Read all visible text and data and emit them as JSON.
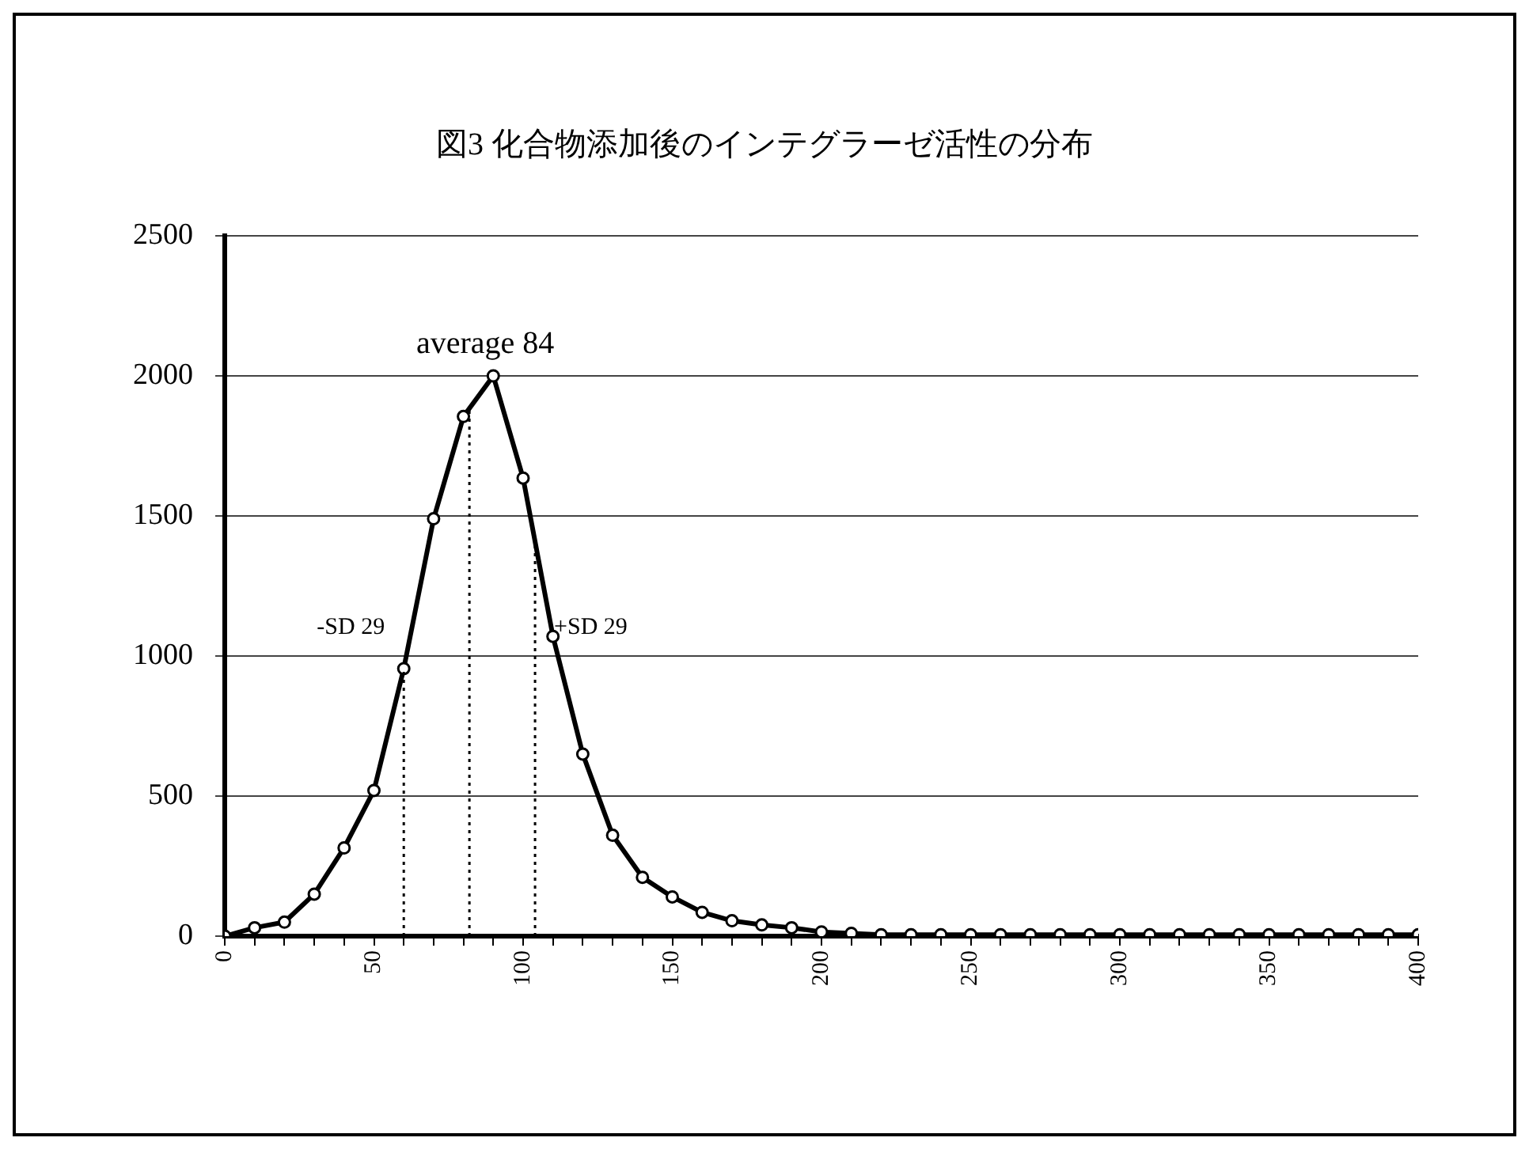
{
  "chart_data": {
    "type": "line",
    "title": "図3 化合物添加後のインテグラーゼ活性の分布",
    "x": [
      0,
      10,
      20,
      30,
      40,
      50,
      60,
      70,
      80,
      90,
      100,
      110,
      120,
      130,
      140,
      150,
      160,
      170,
      180,
      190,
      200,
      210,
      220,
      230,
      240,
      250,
      260,
      270,
      280,
      290,
      300,
      310,
      320,
      330,
      340,
      350,
      360,
      370,
      380,
      390,
      400
    ],
    "series": [
      {
        "color": "#000000",
        "values": [
          0,
          30,
          50,
          150,
          315,
          520,
          955,
          1490,
          1855,
          2000,
          1635,
          1070,
          650,
          360,
          210,
          140,
          85,
          55,
          40,
          30,
          15,
          10,
          5,
          5,
          5,
          5,
          5,
          5,
          5,
          5,
          5,
          5,
          5,
          5,
          5,
          5,
          5,
          5,
          5,
          5,
          5
        ]
      }
    ],
    "xlim": [
      0,
      400
    ],
    "xticks": [
      0,
      {
        "value": 10,
        "label": null
      },
      {
        "value": 20,
        "label": null
      },
      {
        "value": 30,
        "label": null
      },
      {
        "value": 40,
        "label": null
      },
      50,
      {
        "value": 60,
        "label": null
      },
      {
        "value": 70,
        "label": null
      },
      {
        "value": 80,
        "label": null
      },
      {
        "value": 90,
        "label": null
      },
      100,
      {
        "value": 110,
        "label": null
      },
      {
        "value": 120,
        "label": null
      },
      {
        "value": 130,
        "label": null
      },
      {
        "value": 140,
        "label": null
      },
      150,
      {
        "value": 160,
        "label": null
      },
      {
        "value": 170,
        "label": null
      },
      {
        "value": 180,
        "label": null
      },
      {
        "value": 190,
        "label": null
      },
      200,
      {
        "value": 210,
        "label": null
      },
      {
        "value": 220,
        "label": null
      },
      {
        "value": 230,
        "label": null
      },
      {
        "value": 240,
        "label": null
      },
      250,
      {
        "value": 260,
        "label": null
      },
      {
        "value": 270,
        "label": null
      },
      {
        "value": 280,
        "label": null
      },
      {
        "value": 290,
        "label": null
      },
      300,
      {
        "value": 310,
        "label": null
      },
      {
        "value": 320,
        "label": null
      },
      {
        "value": 330,
        "label": null
      },
      {
        "value": 340,
        "label": null
      },
      350,
      {
        "value": 360,
        "label": null
      },
      {
        "value": 370,
        "label": null
      },
      {
        "value": 380,
        "label": null
      },
      {
        "value": 390,
        "label": null
      },
      400
    ],
    "ylim": [
      0,
      2500
    ],
    "yticks": [
      0,
      500,
      1000,
      1500,
      2000,
      2500
    ],
    "grid": "y",
    "marker": "circle",
    "line_style": "solid",
    "ref_lines": [
      {
        "axis": "x",
        "value": 60,
        "label": "-SD 29",
        "line_style": "dotted",
        "color": "#000000"
      },
      {
        "axis": "x",
        "value": 82,
        "label": "average 84",
        "line_style": "dotted",
        "color": "#000000"
      },
      {
        "axis": "x",
        "value": 104,
        "label": "+SD 29",
        "line_style": "dotted",
        "color": "#000000"
      }
    ]
  }
}
